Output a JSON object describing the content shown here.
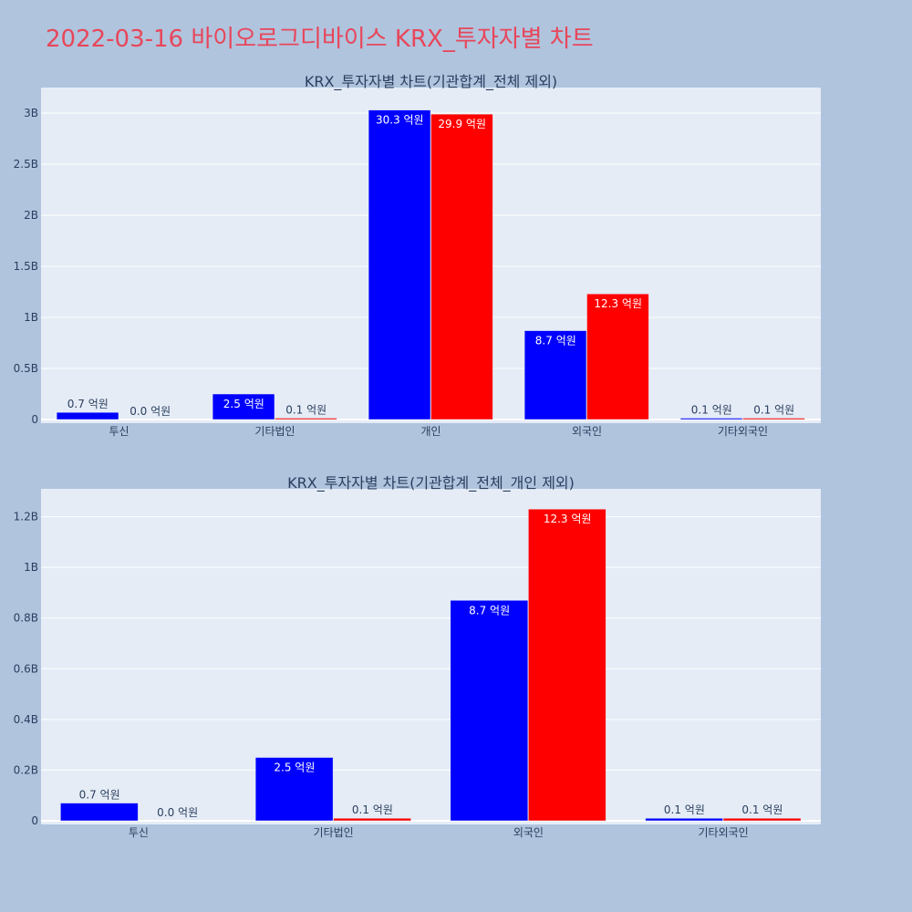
{
  "page": {
    "title": "2022-03-16 바이오로그디바이스 KRX_투자자별 차트"
  },
  "colors": {
    "series_a": "#0000ff",
    "series_b": "#ff0000",
    "background": "#b0c4de",
    "plot_background": "#e5ecf6",
    "title": "#e8465a"
  },
  "chart_data": [
    {
      "type": "bar",
      "title": "KRX_투자자별 차트(기관합계_전체 제외)",
      "categories": [
        "투신",
        "기타법인",
        "개인",
        "외국인",
        "기타외국인"
      ],
      "series": [
        {
          "color": "#0000ff",
          "values": [
            70000000,
            250000000,
            3030000000,
            870000000,
            10000000
          ],
          "labels": [
            "0.7 억원",
            "2.5 억원",
            "30.3 억원",
            "8.7 억원",
            "0.1 억원"
          ]
        },
        {
          "color": "#ff0000",
          "values": [
            0,
            10000000,
            2990000000,
            1230000000,
            10000000
          ],
          "labels": [
            "0.0 억원",
            "0.1 억원",
            "29.9 억원",
            "12.3 억원",
            "0.1 억원"
          ]
        }
      ],
      "yticks": [
        0,
        500000000,
        1000000000,
        1500000000,
        2000000000,
        2500000000,
        3000000000
      ],
      "ytick_labels": [
        "0",
        "0.5B",
        "1B",
        "1.5B",
        "2B",
        "2.5B",
        "3B"
      ],
      "ylim": [
        0,
        3250000000
      ],
      "grid": true,
      "legend": "none"
    },
    {
      "type": "bar",
      "title": "KRX_투자자별 차트(기관합계_전체_개인 제외)",
      "categories": [
        "투신",
        "기타법인",
        "외국인",
        "기타외국인"
      ],
      "series": [
        {
          "color": "#0000ff",
          "values": [
            70000000,
            250000000,
            870000000,
            10000000
          ],
          "labels": [
            "0.7 억원",
            "2.5 억원",
            "8.7 억원",
            "0.1 억원"
          ]
        },
        {
          "color": "#ff0000",
          "values": [
            0,
            10000000,
            1230000000,
            10000000
          ],
          "labels": [
            "0.0 억원",
            "0.1 억원",
            "12.3 억원",
            "0.1 억원"
          ]
        }
      ],
      "yticks": [
        0,
        200000000,
        400000000,
        600000000,
        800000000,
        1000000000,
        1200000000
      ],
      "ytick_labels": [
        "0",
        "0.2B",
        "0.4B",
        "0.6B",
        "0.8B",
        "1B",
        "1.2B"
      ],
      "ylim": [
        0,
        1310000000
      ],
      "grid": true,
      "legend": "none"
    }
  ]
}
